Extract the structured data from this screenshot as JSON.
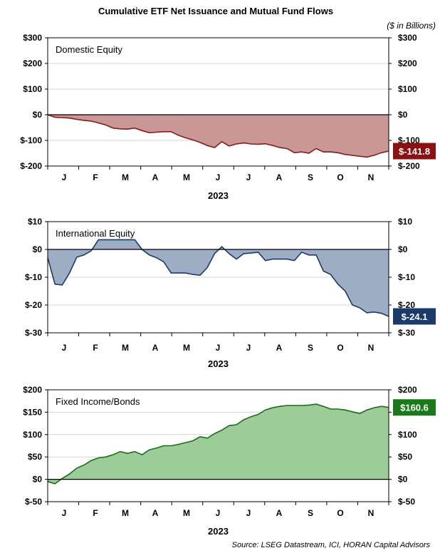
{
  "title": "Cumulative ETF Net Issuance and Mutual Fund Flows",
  "units_note": "($ in Billions)",
  "source": "Source: LSEG Datastream, ICI, HORAN Capital Advisors",
  "chart_data": [
    {
      "type": "area",
      "panel_label": "Domestic Equity",
      "xlabel": "2023",
      "month_ticks": [
        "J",
        "F",
        "M",
        "A",
        "M",
        "J",
        "J",
        "A",
        "S",
        "O",
        "N"
      ],
      "ylim": [
        -200,
        300
      ],
      "yticks": [
        300,
        200,
        100,
        0,
        -100,
        -200
      ],
      "ytick_labels": [
        "$300",
        "$200",
        "$100",
        "$0",
        "$-100",
        "$-200"
      ],
      "fill_color": "#c99796",
      "line_color": "#8b1a1a",
      "end_value": -141.8,
      "end_label": "$-141.8",
      "end_label_bg": "#8b1212",
      "x_weeks": [
        0,
        1,
        2,
        3,
        4,
        5,
        6,
        7,
        8,
        9,
        10,
        11,
        12,
        13,
        14,
        15,
        16,
        17,
        18,
        19,
        20,
        21,
        22,
        23,
        24,
        25,
        26,
        27,
        28,
        29,
        30,
        31,
        32,
        33,
        34,
        35,
        36,
        37,
        38,
        39,
        40,
        41,
        42,
        43,
        44,
        45,
        46,
        47
      ],
      "values": [
        0,
        -10,
        -11,
        -13,
        -18,
        -22,
        -25,
        -32,
        -40,
        -52,
        -55,
        -56,
        -52,
        -62,
        -70,
        -68,
        -66,
        -66,
        -80,
        -90,
        -98,
        -108,
        -120,
        -128,
        -105,
        -122,
        -114,
        -110,
        -114,
        -115,
        -113,
        -120,
        -128,
        -132,
        -148,
        -145,
        -150,
        -132,
        -145,
        -145,
        -148,
        -155,
        -158,
        -162,
        -165,
        -158,
        -148,
        -141.8
      ]
    },
    {
      "type": "area",
      "panel_label": "International Equity",
      "xlabel": "2023",
      "month_ticks": [
        "J",
        "F",
        "M",
        "A",
        "M",
        "J",
        "J",
        "A",
        "S",
        "O",
        "N"
      ],
      "ylim": [
        -30,
        10
      ],
      "yticks": [
        10,
        0,
        -10,
        -20,
        -30
      ],
      "ytick_labels": [
        "$10",
        "$0",
        "$-10",
        "$-20",
        "$-30"
      ],
      "fill_color": "#9daec4",
      "line_color": "#1a3a6b",
      "end_value": -24.1,
      "end_label": "$-24.1",
      "end_label_bg": "#1a3a6b",
      "x_weeks": [
        0,
        1,
        2,
        3,
        4,
        5,
        6,
        7,
        8,
        9,
        10,
        11,
        12,
        13,
        14,
        15,
        16,
        17,
        18,
        19,
        20,
        21,
        22,
        23,
        24,
        25,
        26,
        27,
        28,
        29,
        30,
        31,
        32,
        33,
        34,
        35,
        36,
        37,
        38,
        39,
        40,
        41,
        42,
        43,
        44,
        45,
        46,
        47
      ],
      "values": [
        -3,
        -12.5,
        -12.8,
        -8.5,
        -2.8,
        -2.0,
        -0.5,
        3.5,
        3.5,
        3.5,
        3.5,
        3.5,
        3.5,
        0,
        -2,
        -3,
        -4.5,
        -8.5,
        -8.5,
        -8.5,
        -9,
        -9.3,
        -6.5,
        -1.5,
        1,
        -1.5,
        -3.5,
        -1.5,
        -1.3,
        -1,
        -4,
        -3.5,
        -3.5,
        -3.5,
        -4,
        -1,
        -2,
        -2,
        -7.8,
        -9,
        -12.5,
        -15,
        -20,
        -21,
        -22.8,
        -22.5,
        -23,
        -24.1
      ]
    },
    {
      "type": "area",
      "panel_label": "Fixed Income/Bonds",
      "xlabel": "2023",
      "month_ticks": [
        "J",
        "F",
        "M",
        "A",
        "M",
        "J",
        "J",
        "A",
        "S",
        "O",
        "N"
      ],
      "ylim": [
        -50,
        200
      ],
      "yticks": [
        200,
        150,
        100,
        50,
        0,
        -50
      ],
      "ytick_labels": [
        "$200",
        "$150",
        "$100",
        "$50",
        "$0",
        "$-50"
      ],
      "fill_color": "#9ccd99",
      "line_color": "#1e6b1e",
      "end_value": 160.6,
      "end_label": "$160.6",
      "end_label_bg": "#1a7a1a",
      "x_weeks": [
        0,
        1,
        2,
        3,
        4,
        5,
        6,
        7,
        8,
        9,
        10,
        11,
        12,
        13,
        14,
        15,
        16,
        17,
        18,
        19,
        20,
        21,
        22,
        23,
        24,
        25,
        26,
        27,
        28,
        29,
        30,
        31,
        32,
        33,
        34,
        35,
        36,
        37,
        38,
        39,
        40,
        41,
        42,
        43,
        44,
        45,
        46,
        47
      ],
      "values": [
        -5,
        -10,
        2,
        12,
        25,
        32,
        42,
        48,
        50,
        55,
        62,
        58,
        62,
        55,
        66,
        70,
        75,
        75,
        78,
        82,
        86,
        95,
        92,
        102,
        110,
        120,
        122,
        133,
        140,
        145,
        155,
        160,
        163,
        165,
        165,
        165,
        166,
        168,
        163,
        157,
        157,
        155,
        151,
        147,
        155,
        160,
        163,
        160.6
      ]
    }
  ]
}
